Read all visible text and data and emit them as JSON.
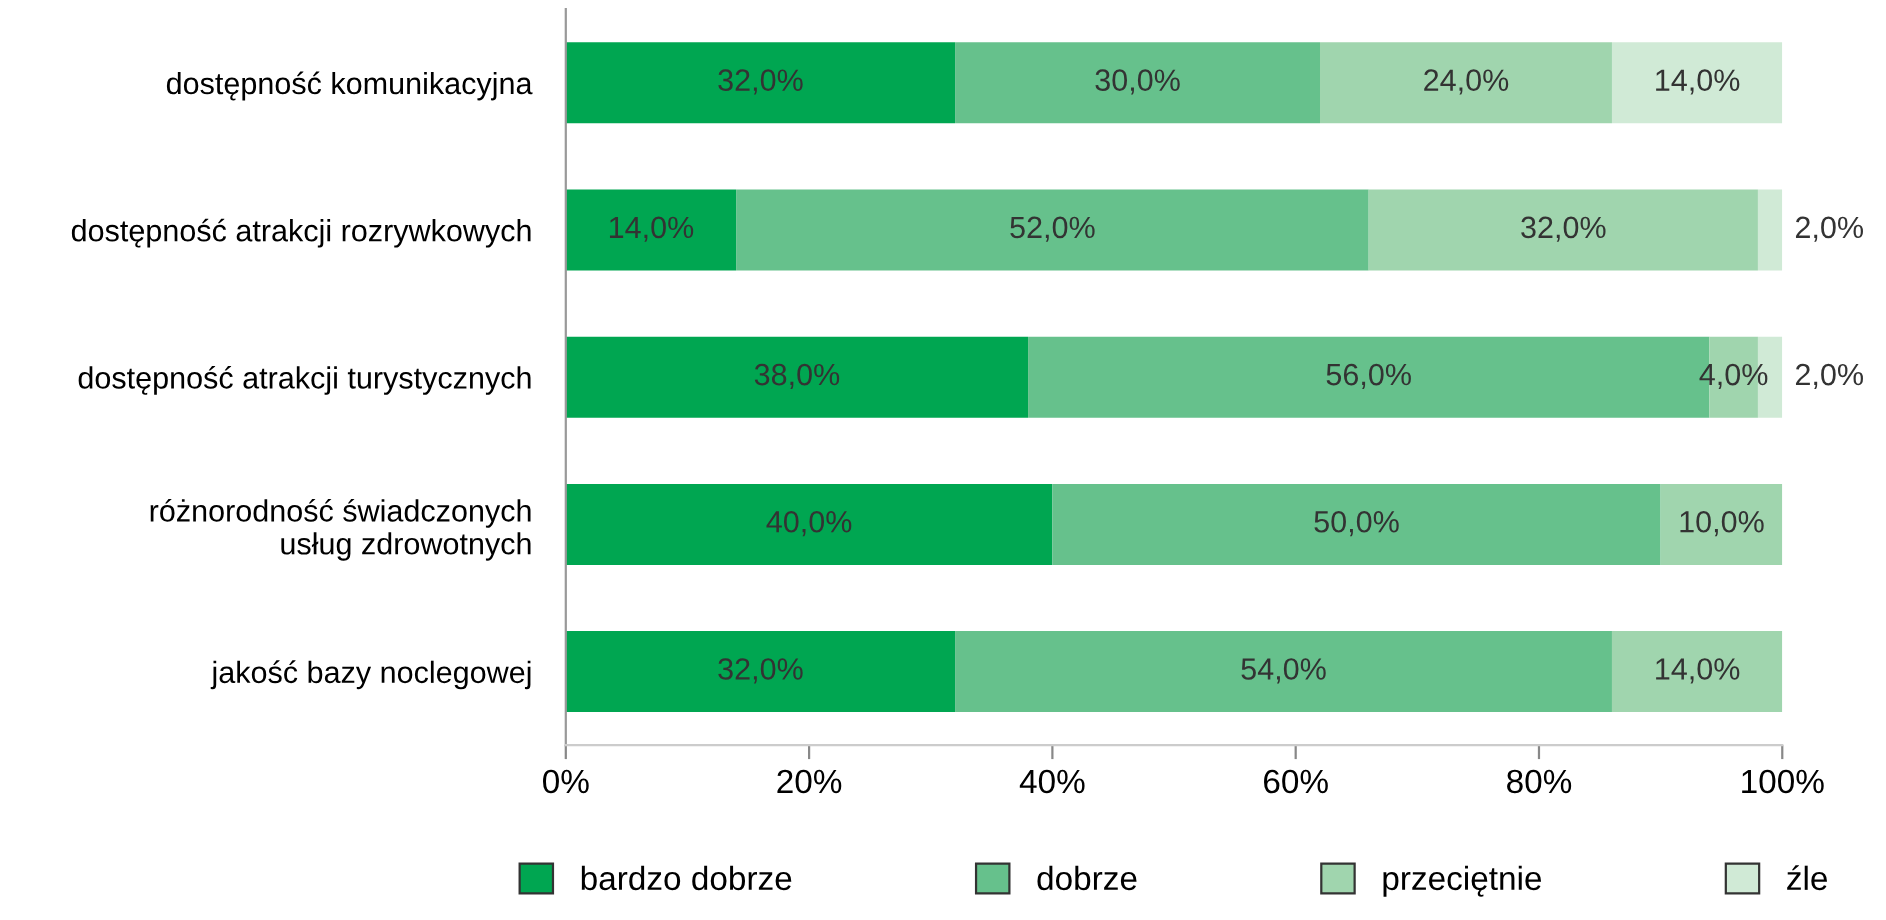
{
  "chart_data": {
    "type": "bar",
    "orientation": "horizontal",
    "stacked": true,
    "categories": [
      "dostępność komunikacyjna",
      "dostępność atrakcji rozrywkowych",
      "dostępność atrakcji turystycznych",
      "różnorodność świadczonych\nusług zdrowotnych",
      "jakość bazy noclegowej"
    ],
    "series": [
      {
        "name": "bardzo dobrze",
        "color": "#00a651",
        "values": [
          32,
          14,
          38,
          40,
          32
        ],
        "value_labels": [
          "32,0%",
          "14,0%",
          "38,0%",
          "40,0%",
          "32,0%"
        ]
      },
      {
        "name": "dobrze",
        "color": "#66c18c",
        "values": [
          30,
          52,
          56,
          50,
          54
        ],
        "value_labels": [
          "30,0%",
          "52,0%",
          "56,0%",
          "50,0%",
          "54,0%"
        ]
      },
      {
        "name": "przeciętnie",
        "color": "#a0d5ae",
        "values": [
          24,
          32,
          4,
          10,
          14
        ],
        "value_labels": [
          "24,0%",
          "32,0%",
          "4,0%",
          "10,0%",
          "14,0%"
        ]
      },
      {
        "name": "źle",
        "color": "#d0ead6",
        "values": [
          14,
          2,
          2,
          null,
          null
        ],
        "value_labels": [
          "14,0%",
          "2,0%",
          "2,0%",
          null,
          null
        ]
      }
    ],
    "xlim": [
      0,
      100
    ],
    "xticks": [
      {
        "value": 0,
        "label": "0%"
      },
      {
        "value": 20,
        "label": "20%"
      },
      {
        "value": 40,
        "label": "40%"
      },
      {
        "value": 60,
        "label": "60%"
      },
      {
        "value": 80,
        "label": "80%"
      },
      {
        "value": 100,
        "label": "100%"
      }
    ],
    "grid": false,
    "legend": "bottom"
  }
}
